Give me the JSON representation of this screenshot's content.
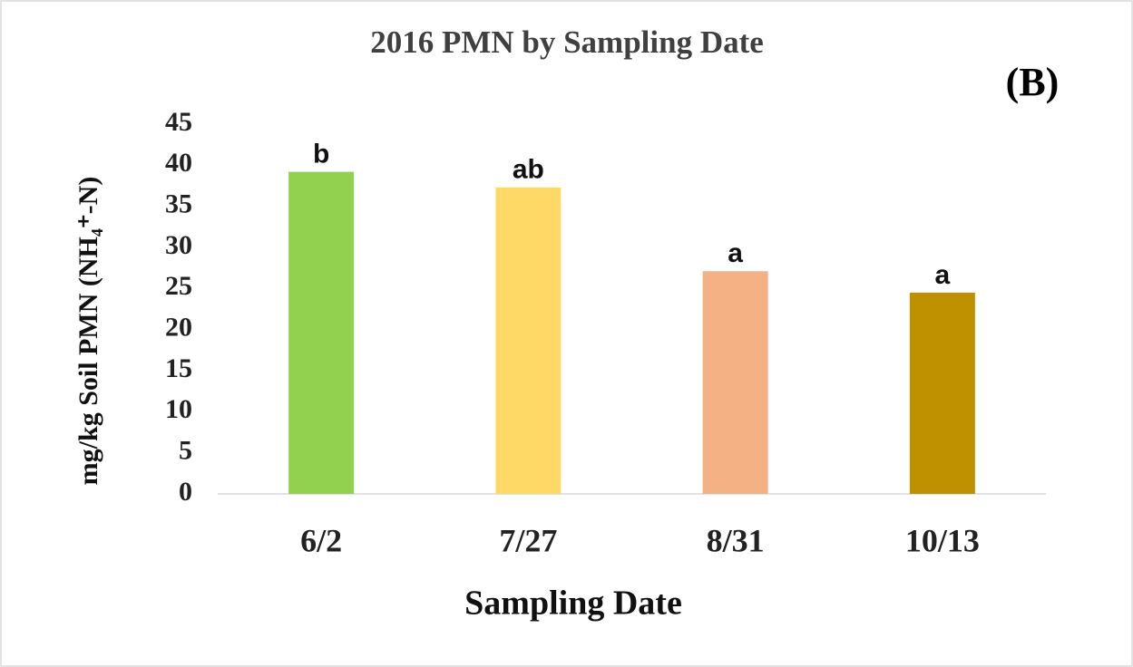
{
  "chart_data": {
    "type": "bar",
    "title": "2016 PMN by Sampling Date",
    "panel_label": "(B)",
    "x_label": "Sampling Date",
    "y_label": "mg/kg Soil PMN (NH₄⁺-N)",
    "categories": [
      "6/2",
      "7/27",
      "8/31",
      "10/13"
    ],
    "values": [
      39.2,
      37.3,
      27.1,
      24.5
    ],
    "annotations": [
      "b",
      "ab",
      "a",
      "a"
    ],
    "colors": [
      "#92d050",
      "#ffd966",
      "#f4b183",
      "#bf9000"
    ],
    "ylim": [
      0,
      45
    ],
    "yticks": [
      0,
      5,
      10,
      15,
      20,
      25,
      30,
      35,
      40,
      45
    ],
    "grid": false
  }
}
